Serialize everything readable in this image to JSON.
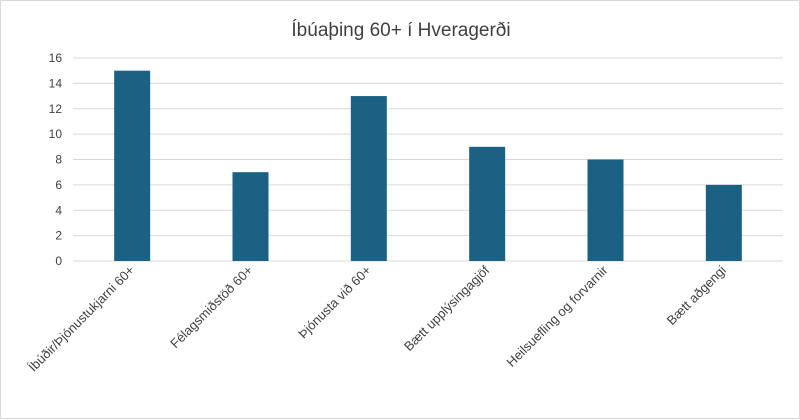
{
  "chart_data": {
    "type": "bar",
    "title": "Íbúaþing 60+ í Hveragerði",
    "categories": [
      "Íbúðir/Þjónustukjarni 60+",
      "Félagsmiðstöð 60+",
      "Þjónusta við 60+",
      "Bætt upplýsingagjöf",
      "Heilsuefling og forvarnir",
      "Bætt aðgengi"
    ],
    "values": [
      15,
      7,
      13,
      9,
      8,
      6
    ],
    "ylim": [
      0,
      16
    ],
    "yticks": [
      0,
      2,
      4,
      6,
      8,
      10,
      12,
      14,
      16
    ],
    "grid": true,
    "bar_color": "#1b6183",
    "grid_color": "#d9d9d9"
  }
}
